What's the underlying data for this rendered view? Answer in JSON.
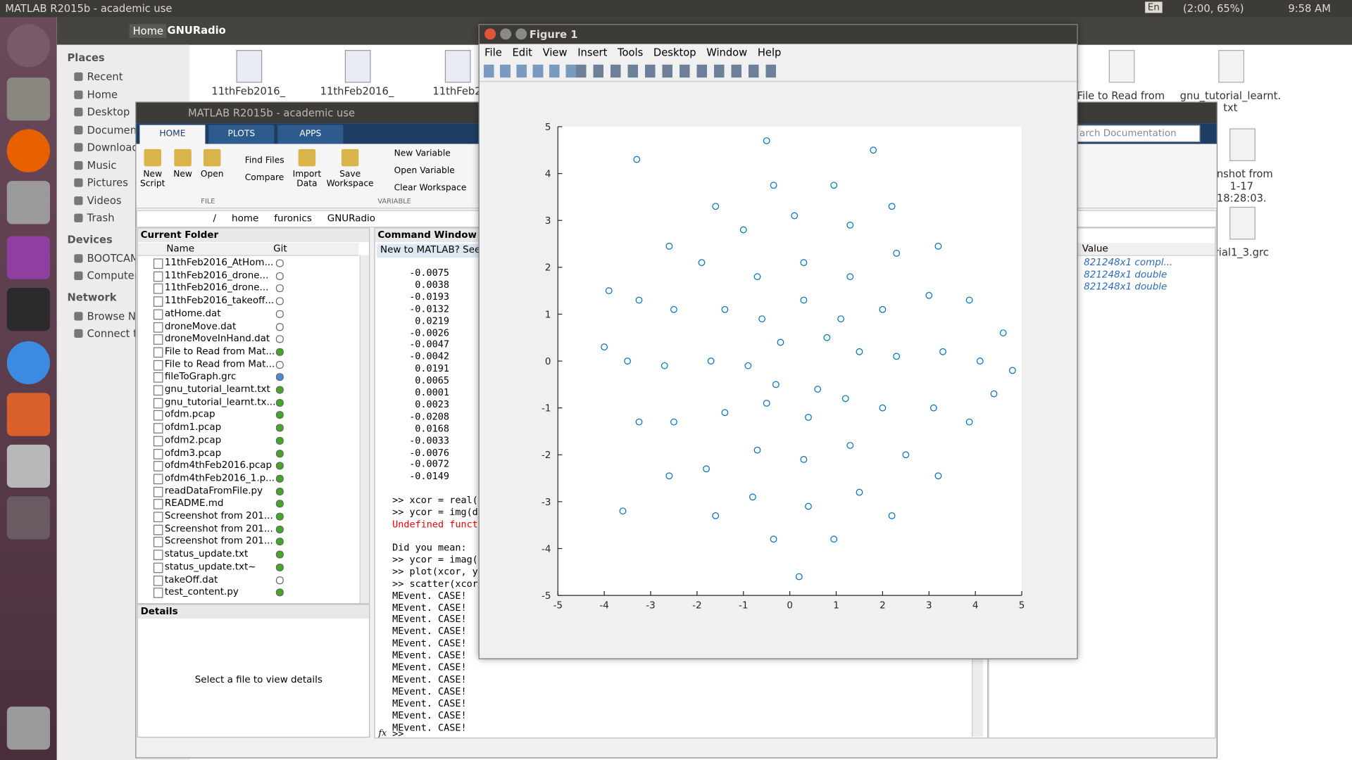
{
  "top_bar": {
    "title": "MATLAB R2015b - academic use",
    "keyboard": "En",
    "battery": "(2:00, 65%)",
    "time": "9:58 AM"
  },
  "file_manager": {
    "breadcrumbs": [
      "Home",
      "GNURadio"
    ],
    "sidebar": [
      {
        "heading": "Places",
        "items": [
          "Recent",
          "Home",
          "Desktop",
          "Document",
          "Download",
          "Music",
          "Pictures",
          "Videos",
          "Trash"
        ]
      },
      {
        "heading": "Devices",
        "items": [
          "BOOTCAM",
          "Computer"
        ]
      },
      {
        "heading": "Network",
        "items": [
          "Browse Ne",
          "Connect to"
        ]
      }
    ],
    "files_top": [
      "11thFeb2016_",
      "11thFeb2016_",
      "11thFeb2"
    ],
    "files_right": [
      "File to Read from",
      "gnu_tutorial_learnt. txt",
      "enshot from 1-17 18:28:03. png",
      "rial1_3.grc"
    ]
  },
  "matlab": {
    "title": "MATLAB R2015b - academic use",
    "tabs": [
      "HOME",
      "PLOTS",
      "APPS"
    ],
    "file_buttons": [
      "New Script",
      "New",
      "Open"
    ],
    "file_small": [
      "Find Files",
      "Compare"
    ],
    "variable_buttons": [
      "Import Data",
      "Save Workspace"
    ],
    "variable_small": [
      "New Variable",
      "Open Variable",
      "Clear Workspace"
    ],
    "sections": [
      "FILE",
      "VARIABLE"
    ],
    "path": [
      "/",
      "home",
      "furonics",
      "GNURadio"
    ],
    "current_folder": {
      "title": "Current Folder",
      "columns": [
        "Name",
        "Git"
      ],
      "rows": [
        {
          "name": "11thFeb2016_AtHom...",
          "git": "#ffffff"
        },
        {
          "name": "11thFeb2016_drone...",
          "git": "#ffffff"
        },
        {
          "name": "11thFeb2016_drone...",
          "git": "#ffffff"
        },
        {
          "name": "11thFeb2016_takeoff...",
          "git": "#ffffff"
        },
        {
          "name": "atHome.dat",
          "git": "#ffffff"
        },
        {
          "name": "droneMove.dat",
          "git": "#ffffff"
        },
        {
          "name": "droneMoveInHand.dat",
          "git": "#ffffff"
        },
        {
          "name": "File to Read from Mat...",
          "git": "#43a72c"
        },
        {
          "name": "File to Read from Mat...",
          "git": "#ffffff"
        },
        {
          "name": "fileToGraph.grc",
          "git": "#4a8ad6"
        },
        {
          "name": "gnu_tutorial_learnt.txt",
          "git": "#43a72c"
        },
        {
          "name": "gnu_tutorial_learnt.tx...",
          "git": "#43a72c"
        },
        {
          "name": "ofdm.pcap",
          "git": "#43a72c"
        },
        {
          "name": "ofdm1.pcap",
          "git": "#43a72c"
        },
        {
          "name": "ofdm2.pcap",
          "git": "#43a72c"
        },
        {
          "name": "ofdm3.pcap",
          "git": "#43a72c"
        },
        {
          "name": "ofdm4thFeb2016.pcap",
          "git": "#43a72c"
        },
        {
          "name": "ofdm4thFeb2016_1.p...",
          "git": "#43a72c"
        },
        {
          "name": "readDataFromFile.py",
          "git": "#43a72c"
        },
        {
          "name": "README.md",
          "git": "#43a72c"
        },
        {
          "name": "Screenshot from 201...",
          "git": "#43a72c"
        },
        {
          "name": "Screenshot from 201...",
          "git": "#43a72c"
        },
        {
          "name": "Screenshot from 201...",
          "git": "#43a72c"
        },
        {
          "name": "status_update.txt",
          "git": "#43a72c"
        },
        {
          "name": "status_update.txt~",
          "git": "#43a72c"
        },
        {
          "name": "takeOff.dat",
          "git": "#ffffff"
        },
        {
          "name": "test_content.py",
          "git": "#43a72c"
        }
      ]
    },
    "details": {
      "title": "Details",
      "hint": "Select a file to view details"
    },
    "command_window": {
      "title": "Command Window",
      "banner": "New to MATLAB? See r",
      "blocks": [
        [
          "-0.0075",
          "0.0038",
          "-0.0193",
          "-0.0132",
          "0.0219",
          "-0.0026",
          "-0.0047",
          "-0.0042",
          "0.0191",
          "0.0065",
          "0.0001",
          "0.0023",
          "-0.0208",
          "0.0168",
          "-0.0033",
          "-0.0076",
          "-0.0072",
          "-0.0149"
        ],
        [
          ">> xcor = real(d",
          ">> ycor = img(da",
          "Undefined functi"
        ],
        [
          "Did you mean:",
          ">> ycor = imag(d",
          ">> plot(xcor, yc",
          ">> scatter(xcor,",
          "MEvent. CASE!",
          "MEvent. CASE!",
          "MEvent. CASE!",
          "MEvent. CASE!",
          "MEvent. CASE!",
          "MEvent. CASE!",
          "MEvent. CASE!",
          "MEvent. CASE!",
          "MEvent. CASE!",
          "MEvent. CASE!",
          "MEvent. CASE!",
          "MEvent. CASE!"
        ]
      ],
      "prompt_icon": "fx",
      "prompt": ">>"
    },
    "workspace": {
      "search": "arch Documentation",
      "column": "Value",
      "values": [
        "821248x1 compl...",
        "821248x1 double",
        "821248x1 double"
      ]
    }
  },
  "figure": {
    "title": "Figure 1",
    "menu": [
      "File",
      "Edit",
      "View",
      "Insert",
      "Tools",
      "Desktop",
      "Window",
      "Help"
    ]
  },
  "chart_data": {
    "type": "scatter",
    "color": "#0072bd",
    "x": [
      4.1,
      3.87,
      3.2,
      2.2,
      0.95,
      -0.35,
      -1.6,
      -2.6,
      -3.25,
      -3.5,
      -3.25,
      -2.6,
      -1.6,
      -0.35,
      0.95,
      2.2,
      3.2,
      3.87,
      3.3,
      3.0,
      2.3,
      1.3,
      0.1,
      -1.0,
      -1.9,
      -2.5,
      -2.7,
      -2.5,
      -1.8,
      -0.8,
      0.4,
      1.5,
      2.5,
      3.1,
      2.3,
      2.0,
      1.3,
      0.3,
      -0.7,
      -1.4,
      -1.7,
      -1.4,
      -0.7,
      0.3,
      1.3,
      2.0,
      1.5,
      1.1,
      0.3,
      -0.6,
      -0.9,
      -0.5,
      0.4,
      1.2,
      -3.3,
      4.6,
      4.8,
      4.4,
      -3.6,
      0.2,
      -3.9,
      -4.0,
      1.8,
      -0.5,
      0.8,
      -0.2,
      0.6,
      -0.3
    ],
    "values": [
      0,
      1.3,
      2.45,
      3.3,
      3.75,
      3.75,
      3.3,
      2.45,
      1.3,
      0,
      -1.3,
      -2.45,
      -3.3,
      -3.8,
      -3.8,
      -3.3,
      -2.45,
      -1.3,
      0.2,
      1.4,
      2.3,
      2.9,
      3.1,
      2.8,
      2.1,
      1.1,
      -0.1,
      -1.3,
      -2.3,
      -2.9,
      -3.1,
      -2.8,
      -2.0,
      -1.0,
      0.1,
      1.1,
      1.8,
      2.1,
      1.8,
      1.1,
      0,
      -1.1,
      -1.9,
      -2.1,
      -1.8,
      -1.0,
      0.2,
      0.9,
      1.3,
      0.9,
      -0.1,
      -0.9,
      -1.2,
      -0.8,
      4.3,
      0.6,
      -0.2,
      -0.7,
      -3.2,
      -4.6,
      1.5,
      0.3,
      4.5,
      4.7,
      0.5,
      0.4,
      -0.6,
      -0.5
    ],
    "xlim": [
      -5,
      5
    ],
    "ylim": [
      -5,
      5
    ],
    "xticks": [
      -5,
      -4,
      -3,
      -2,
      -1,
      0,
      1,
      2,
      3,
      4,
      5
    ],
    "yticks": [
      -5,
      -4,
      -3,
      -2,
      -1,
      0,
      1,
      2,
      3,
      4,
      5
    ]
  }
}
